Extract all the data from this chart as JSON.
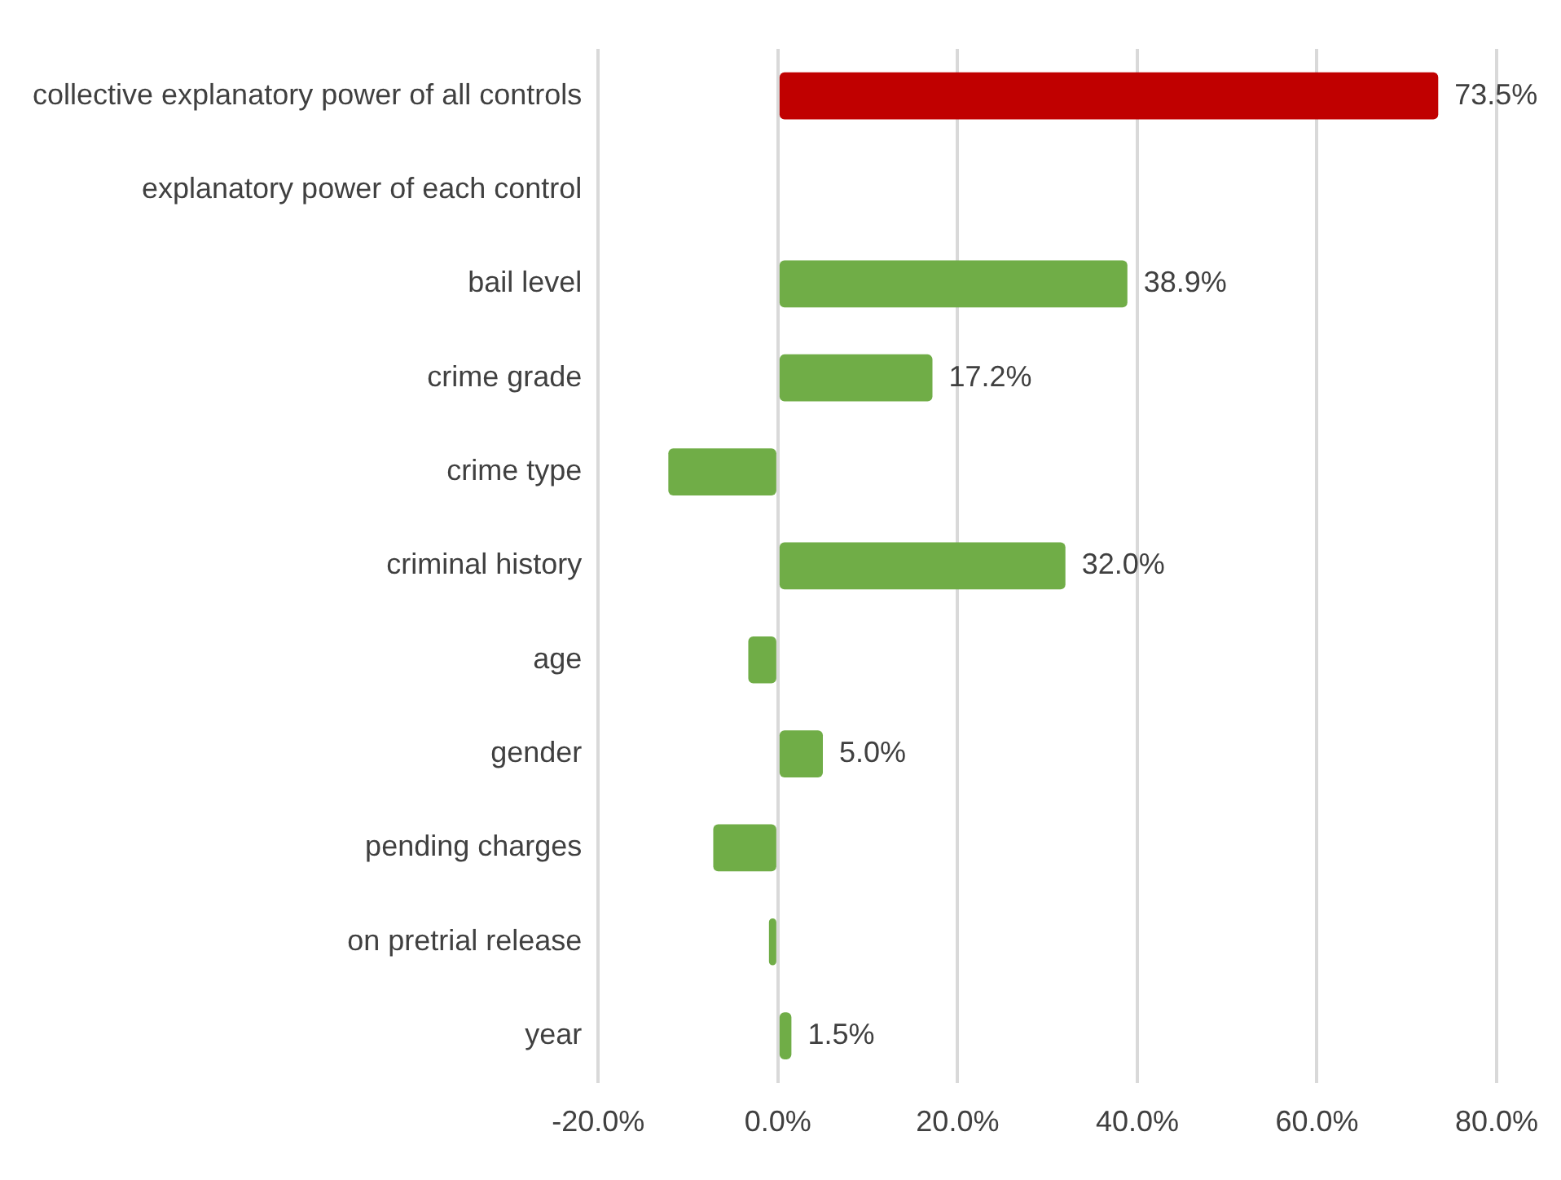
{
  "chart_data": {
    "type": "bar",
    "orientation": "horizontal",
    "categories": [
      "collective explanatory power of all controls",
      "explanatory power of each control",
      "bail level",
      "crime grade",
      "crime type",
      "criminal history",
      "age",
      "gender",
      "pending charges",
      "on pretrial release",
      "year"
    ],
    "values": [
      73.5,
      null,
      38.9,
      17.2,
      -12.2,
      32.0,
      -3.3,
      5.0,
      -7.2,
      -1.0,
      1.5
    ],
    "colors": [
      "#c00000",
      null,
      "#70ad47",
      "#70ad47",
      "#70ad47",
      "#70ad47",
      "#70ad47",
      "#70ad47",
      "#70ad47",
      "#70ad47",
      "#70ad47"
    ],
    "value_labels": [
      "73.5%",
      null,
      "38.9%",
      "17.2%",
      null,
      "32.0%",
      null,
      "5.0%",
      null,
      null,
      "1.5%"
    ],
    "xlim": [
      -20,
      80
    ],
    "xticks": [
      {
        "value": -20,
        "label": "-20.0%"
      },
      {
        "value": 0,
        "label": "0.0%"
      },
      {
        "value": 20,
        "label": "20.0%"
      },
      {
        "value": 40,
        "label": "40.0%"
      },
      {
        "value": 60,
        "label": "60.0%"
      },
      {
        "value": 80,
        "label": "80.0%"
      }
    ],
    "grid": "x",
    "legend": false
  }
}
